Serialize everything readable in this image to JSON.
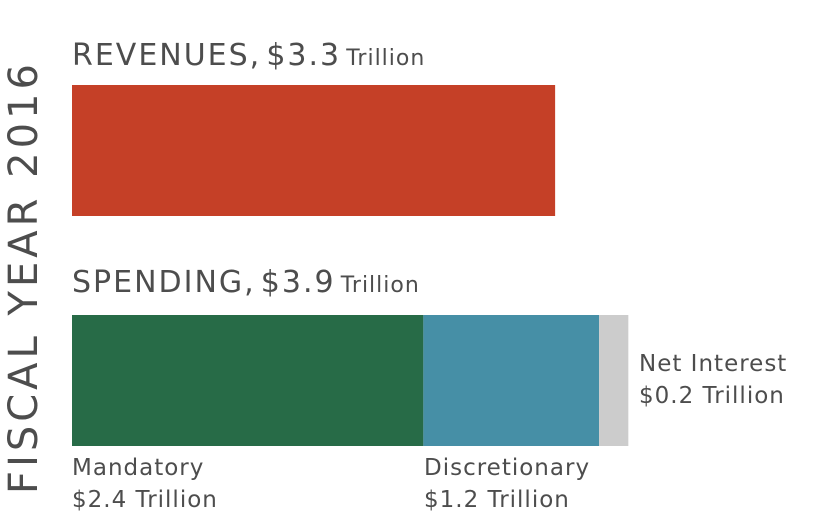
{
  "figure_title": "FISCAL YEAR 2016",
  "revenues": {
    "title": "REVENUES,",
    "amount": "$3.3",
    "unit": "Trillion"
  },
  "spending": {
    "title": "SPENDING,",
    "amount": "$3.9",
    "unit": "Trillion"
  },
  "segments": [
    {
      "name": "Mandatory",
      "value_label": "$2.4 Trillion"
    },
    {
      "name": "Discretionary",
      "value_label": "$1.2 Trillion"
    },
    {
      "name": "Net Interest",
      "value_label": "$0.2 Trillion"
    }
  ],
  "colors": {
    "revenues": "#c54027",
    "mandatory": "#276b47",
    "discretionary": "#468fa6",
    "net_interest": "#cccccc"
  },
  "chart_data": {
    "type": "bar",
    "orientation": "horizontal",
    "stacked": true,
    "title": "FISCAL YEAR 2016",
    "unit": "Trillion",
    "bars": [
      {
        "label": "REVENUES",
        "total": 3.3,
        "segments": [
          {
            "name": "Revenues",
            "value": 3.3
          }
        ]
      },
      {
        "label": "SPENDING",
        "total": 3.9,
        "segments": [
          {
            "name": "Mandatory",
            "value": 2.4
          },
          {
            "name": "Discretionary",
            "value": 1.2
          },
          {
            "name": "Net Interest",
            "value": 0.2
          }
        ]
      }
    ],
    "grid": false,
    "legend": "none"
  }
}
